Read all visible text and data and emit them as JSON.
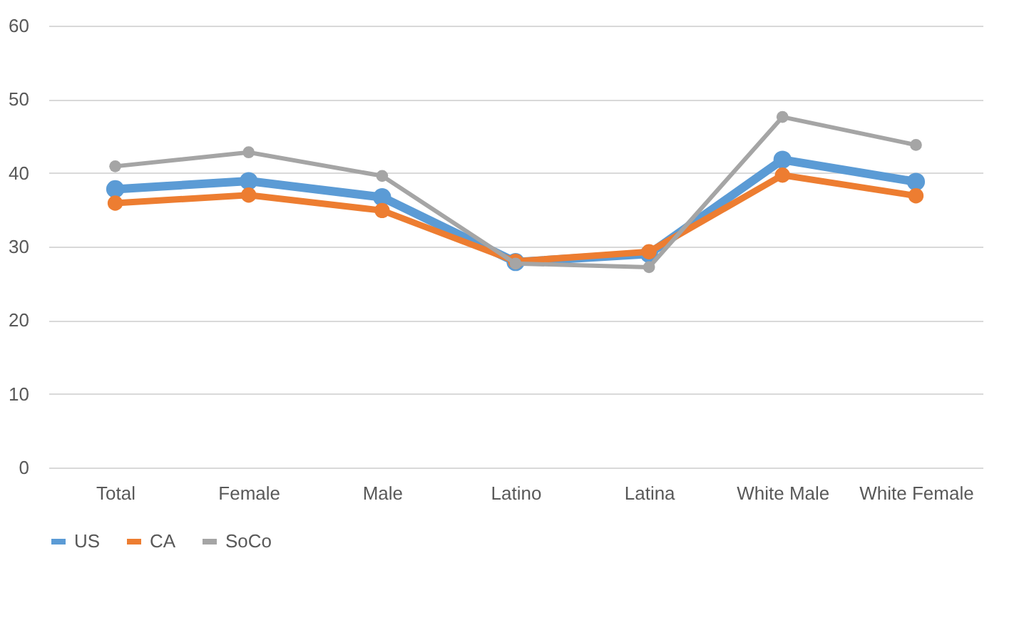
{
  "chart_data": {
    "type": "line",
    "categories": [
      "Total",
      "Female",
      "Male",
      "Latino",
      "Latina",
      "White Male",
      "White Female"
    ],
    "series": [
      {
        "name": "US",
        "color": "#5b9bd5",
        "values": [
          37.8,
          38.9,
          36.7,
          27.9,
          29,
          41.8,
          38.8
        ]
      },
      {
        "name": "CA",
        "color": "#ed7d31",
        "values": [
          35.9,
          37,
          34.9,
          28,
          29.3,
          39.7,
          36.9
        ]
      },
      {
        "name": "SoCo",
        "color": "#a5a5a5",
        "values": [
          40.9,
          42.8,
          39.6,
          27.7,
          27.2,
          47.6,
          43.8
        ]
      }
    ],
    "ylim": [
      0,
      60
    ],
    "yticks": [
      0,
      10,
      20,
      30,
      40,
      50,
      60
    ],
    "grid": "y",
    "legend": "bottom",
    "marker": "circle",
    "line_style": "solid"
  }
}
